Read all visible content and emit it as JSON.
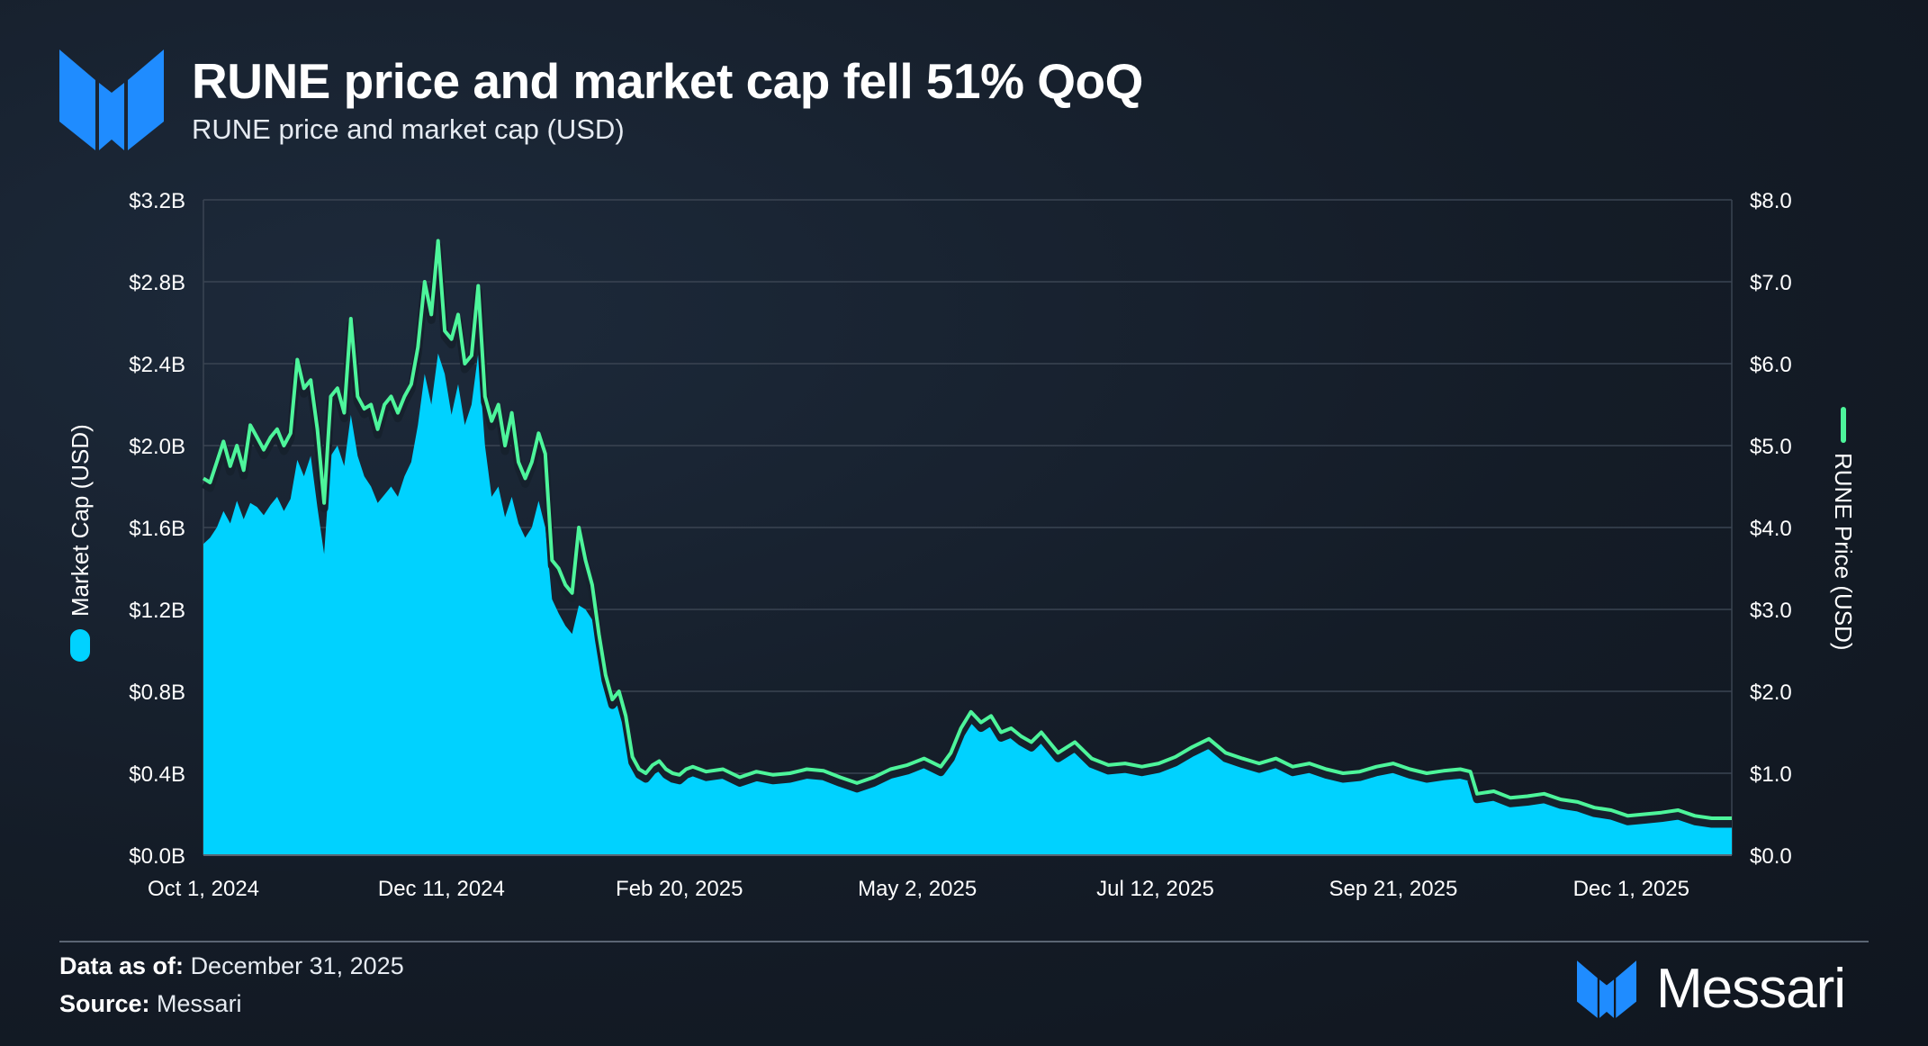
{
  "header": {
    "title": "RUNE price and market cap fell 51% QoQ",
    "subtitle": "RUNE price and market cap (USD)"
  },
  "footer": {
    "data_as_of_label": "Data as of:",
    "data_as_of_value": "December 31, 2025",
    "source_label": "Source:",
    "source_value": "Messari",
    "brand": "Messari"
  },
  "colors": {
    "market_cap": "#00d2ff",
    "price": "#4df59b",
    "grid": "#3a4452",
    "logo_blue": "#1f8cff"
  },
  "chart_data": {
    "type": "area",
    "title": "RUNE price and market cap fell 51% QoQ",
    "subtitle": "RUNE price and market cap (USD)",
    "xlabel": "",
    "y_left_label": "Market Cap (USD)",
    "y_right_label": "RUNE Price (USD)",
    "x_ticks": [
      "Oct 1, 2024",
      "Dec 11, 2024",
      "Feb 20, 2025",
      "May 2, 2025",
      "Jul 12, 2025",
      "Sep 21, 2025",
      "Dec 1, 2025"
    ],
    "x_tick_days": [
      0,
      71,
      142,
      213,
      284,
      355,
      426
    ],
    "x_range_days": [
      0,
      456
    ],
    "y_left_ticks": [
      "$0.0B",
      "$0.4B",
      "$0.8B",
      "$1.2B",
      "$1.6B",
      "$2.0B",
      "$2.4B",
      "$2.8B",
      "$3.2B"
    ],
    "y_right_ticks": [
      "$0.0",
      "$1.0",
      "$2.0",
      "$3.0",
      "$4.0",
      "$5.0",
      "$6.0",
      "$7.0",
      "$8.0"
    ],
    "ylim_left_billions": [
      0,
      3.2
    ],
    "ylim_right_usd": [
      0,
      8
    ],
    "legend": "left and right axis labels",
    "series": [
      {
        "name": "Market Cap (USD, billions)",
        "axis": "left",
        "style": "area",
        "x_days": [
          0,
          2,
          4,
          6,
          8,
          10,
          12,
          14,
          16,
          18,
          20,
          22,
          24,
          26,
          28,
          30,
          32,
          34,
          36,
          38,
          40,
          42,
          44,
          46,
          48,
          50,
          52,
          54,
          56,
          58,
          60,
          62,
          64,
          66,
          68,
          70,
          72,
          74,
          76,
          78,
          80,
          82,
          84,
          86,
          88,
          90,
          92,
          94,
          96,
          98,
          100,
          102,
          104,
          106,
          108,
          110,
          112,
          114,
          116,
          118,
          120,
          122,
          124,
          126,
          128,
          130,
          132,
          134,
          136,
          138,
          140,
          142,
          144,
          146,
          150,
          155,
          160,
          165,
          170,
          175,
          180,
          185,
          190,
          195,
          200,
          205,
          210,
          215,
          220,
          223,
          226,
          229,
          232,
          235,
          238,
          241,
          244,
          247,
          250,
          255,
          260,
          265,
          270,
          275,
          280,
          285,
          290,
          295,
          300,
          305,
          310,
          315,
          320,
          325,
          330,
          335,
          340,
          345,
          350,
          355,
          360,
          365,
          370,
          375,
          378,
          380,
          385,
          390,
          395,
          400,
          405,
          410,
          415,
          420,
          425,
          430,
          435,
          440,
          445,
          450,
          456
        ],
        "values": [
          1.52,
          1.55,
          1.6,
          1.68,
          1.62,
          1.73,
          1.64,
          1.72,
          1.7,
          1.66,
          1.71,
          1.75,
          1.68,
          1.74,
          1.93,
          1.85,
          1.95,
          1.7,
          1.47,
          1.95,
          2.0,
          1.9,
          2.15,
          1.95,
          1.85,
          1.8,
          1.72,
          1.76,
          1.8,
          1.75,
          1.85,
          1.92,
          2.1,
          2.35,
          2.2,
          2.45,
          2.35,
          2.15,
          2.3,
          2.1,
          2.2,
          2.45,
          2.0,
          1.75,
          1.8,
          1.65,
          1.75,
          1.62,
          1.55,
          1.6,
          1.73,
          1.6,
          1.25,
          1.18,
          1.12,
          1.08,
          1.22,
          1.2,
          1.15,
          1.0,
          0.88,
          0.78,
          0.8,
          0.7,
          0.45,
          0.42,
          0.4,
          0.44,
          0.46,
          0.42,
          0.4,
          0.39,
          0.42,
          0.43,
          0.4,
          0.42,
          0.37,
          0.41,
          0.39,
          0.4,
          0.42,
          0.41,
          0.38,
          0.35,
          0.38,
          0.42,
          0.44,
          0.47,
          0.43,
          0.5,
          0.62,
          0.7,
          0.65,
          0.68,
          0.6,
          0.62,
          0.58,
          0.55,
          0.6,
          0.5,
          0.55,
          0.47,
          0.44,
          0.45,
          0.43,
          0.45,
          0.48,
          0.53,
          0.57,
          0.5,
          0.47,
          0.45,
          0.47,
          0.43,
          0.45,
          0.42,
          0.4,
          0.41,
          0.43,
          0.45,
          0.42,
          0.4,
          0.41,
          0.42,
          0.41,
          0.3,
          0.31,
          0.28,
          0.29,
          0.3,
          0.27,
          0.26,
          0.23,
          0.22,
          0.19,
          0.2,
          0.21,
          0.22,
          0.19,
          0.18,
          0.18
        ]
      },
      {
        "name": "RUNE Price (USD)",
        "axis": "right",
        "style": "line",
        "x_days": [
          0,
          2,
          4,
          6,
          8,
          10,
          12,
          14,
          16,
          18,
          20,
          22,
          24,
          26,
          28,
          30,
          32,
          34,
          36,
          38,
          40,
          42,
          44,
          46,
          48,
          50,
          52,
          54,
          56,
          58,
          60,
          62,
          64,
          66,
          68,
          70,
          72,
          74,
          76,
          78,
          80,
          82,
          84,
          86,
          88,
          90,
          92,
          94,
          96,
          98,
          100,
          102,
          104,
          106,
          108,
          110,
          112,
          114,
          116,
          118,
          120,
          122,
          124,
          126,
          128,
          130,
          132,
          134,
          136,
          138,
          140,
          142,
          144,
          146,
          150,
          155,
          160,
          165,
          170,
          175,
          180,
          185,
          190,
          195,
          200,
          205,
          210,
          215,
          220,
          223,
          226,
          229,
          232,
          235,
          238,
          241,
          244,
          247,
          250,
          255,
          260,
          265,
          270,
          275,
          280,
          285,
          290,
          295,
          300,
          305,
          310,
          315,
          320,
          325,
          330,
          335,
          340,
          345,
          350,
          355,
          360,
          365,
          370,
          375,
          378,
          380,
          385,
          390,
          395,
          400,
          405,
          410,
          415,
          420,
          425,
          430,
          435,
          440,
          445,
          450,
          456
        ],
        "values": [
          4.6,
          4.55,
          4.8,
          5.05,
          4.75,
          5.0,
          4.7,
          5.25,
          5.1,
          4.95,
          5.1,
          5.2,
          5.0,
          5.15,
          6.05,
          5.7,
          5.8,
          5.2,
          4.3,
          5.6,
          5.7,
          5.4,
          6.55,
          5.6,
          5.45,
          5.5,
          5.2,
          5.5,
          5.6,
          5.4,
          5.6,
          5.75,
          6.2,
          7.0,
          6.6,
          7.5,
          6.4,
          6.3,
          6.6,
          6.0,
          6.1,
          6.95,
          5.6,
          5.3,
          5.5,
          5.0,
          5.4,
          4.8,
          4.6,
          4.8,
          5.15,
          4.9,
          3.6,
          3.5,
          3.3,
          3.2,
          4.0,
          3.6,
          3.3,
          2.7,
          2.2,
          1.9,
          2.0,
          1.7,
          1.2,
          1.05,
          1.0,
          1.1,
          1.15,
          1.05,
          1.0,
          0.98,
          1.05,
          1.08,
          1.02,
          1.05,
          0.95,
          1.02,
          0.98,
          1.0,
          1.05,
          1.03,
          0.95,
          0.88,
          0.95,
          1.05,
          1.1,
          1.18,
          1.08,
          1.25,
          1.55,
          1.75,
          1.62,
          1.7,
          1.5,
          1.55,
          1.45,
          1.38,
          1.5,
          1.25,
          1.38,
          1.18,
          1.1,
          1.12,
          1.08,
          1.12,
          1.2,
          1.32,
          1.42,
          1.25,
          1.18,
          1.12,
          1.18,
          1.08,
          1.12,
          1.05,
          1.0,
          1.02,
          1.08,
          1.12,
          1.05,
          1.0,
          1.03,
          1.05,
          1.02,
          0.75,
          0.78,
          0.7,
          0.72,
          0.75,
          0.68,
          0.65,
          0.58,
          0.55,
          0.48,
          0.5,
          0.52,
          0.55,
          0.48,
          0.45,
          0.45
        ]
      }
    ]
  }
}
